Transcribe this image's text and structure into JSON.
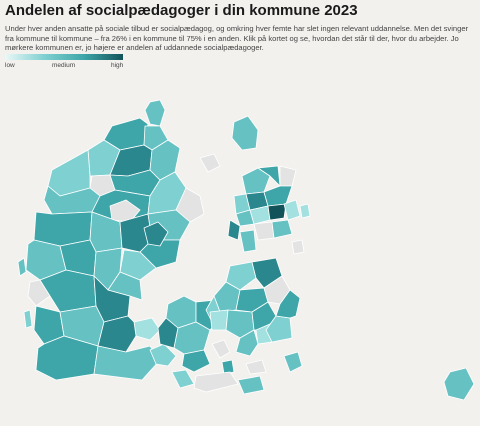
{
  "title": "Andelen af socialpædagoger i din kommune 2023",
  "description": "Under hver anden ansatte på sociale tilbud er socialpædagog, og omkring hver femte har slet ingen relevant uddannelse. Men det svinger fra kommune til kommune – fra 26% i en kommune til 75% i en anden. Klik på kortet og se, hvordan det står til der, hvor du arbejder. Jo mørkere kommunen er, jo højere er andelen af uddannede socialpædagoger.",
  "legend": {
    "low": "low",
    "medium": "medium",
    "high": "high",
    "colors": [
      "#eaf8f8",
      "#7fd0d1",
      "#3ea6a9",
      "#12535a"
    ]
  },
  "map_style": {
    "background": "#f3f1ee",
    "no_data_color": "#e3e3e3",
    "border_color": "#ffffff"
  }
}
